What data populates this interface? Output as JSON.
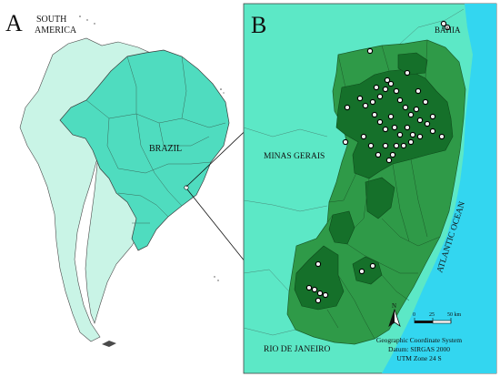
{
  "panel_a": {
    "letter": "A",
    "continent_label_1": "SOUTH",
    "continent_label_2": "AMERICA",
    "country_label": "BRAZIL"
  },
  "panel_b": {
    "letter": "B",
    "state_labels": {
      "bahia": "BAHIA",
      "minas": "MINAS GERAIS",
      "rio": "RIO DE JANEIRO",
      "ocean": "ATLANTIC OCEAN"
    },
    "north_label": "N",
    "scale": {
      "tick_0": "0",
      "tick_1": "25",
      "tick_2": "50 km"
    },
    "crs_lines": {
      "line1": "Geographic Coordinate System",
      "line2": "Datum: SIRGAS 2000",
      "line3": "UTM Zone 24 S"
    }
  },
  "colors": {
    "sea": "#33d6f0",
    "neighbor_states": "#5ce8c6",
    "espirito_santo": "#2f9a48",
    "highlight_zone": "#15702a",
    "brazil": "#4fdcbf",
    "other_countries": "#c9f4e6",
    "points": "#f2f2f2"
  }
}
